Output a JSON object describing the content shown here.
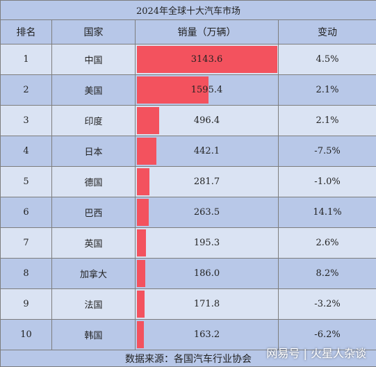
{
  "chart_data": {
    "type": "table",
    "title": "2024年全球十大汽车市场",
    "columns": [
      "排名",
      "国家",
      "销量（万辆）",
      "变动"
    ],
    "rows": [
      {
        "rank": "1",
        "country": "中国",
        "sales": 3143.6,
        "sales_label": "3143.6",
        "change": "4.5%",
        "change_sign": "positive"
      },
      {
        "rank": "2",
        "country": "美国",
        "sales": 1595.4,
        "sales_label": "1595.4",
        "change": "2.1%",
        "change_sign": "positive"
      },
      {
        "rank": "3",
        "country": "印度",
        "sales": 496.4,
        "sales_label": "496.4",
        "change": "2.1%",
        "change_sign": "positive"
      },
      {
        "rank": "4",
        "country": "日本",
        "sales": 442.1,
        "sales_label": "442.1",
        "change": "-7.5%",
        "change_sign": "negative"
      },
      {
        "rank": "5",
        "country": "德国",
        "sales": 281.7,
        "sales_label": "281.7",
        "change": "-1.0%",
        "change_sign": "negative"
      },
      {
        "rank": "6",
        "country": "巴西",
        "sales": 263.5,
        "sales_label": "263.5",
        "change": "14.1%",
        "change_sign": "positive"
      },
      {
        "rank": "7",
        "country": "英国",
        "sales": 195.3,
        "sales_label": "195.3",
        "change": "2.6%",
        "change_sign": "positive"
      },
      {
        "rank": "8",
        "country": "加拿大",
        "sales": 186.0,
        "sales_label": "186.0",
        "change": "8.2%",
        "change_sign": "positive"
      },
      {
        "rank": "9",
        "country": "法国",
        "sales": 171.8,
        "sales_label": "171.8",
        "change": "-3.2%",
        "change_sign": "negative"
      },
      {
        "rank": "10",
        "country": "韩国",
        "sales": 163.2,
        "sales_label": "163.2",
        "change": "-6.2%",
        "change_sign": "negative"
      }
    ],
    "bar_color": "#f3525e",
    "positive_color": "#c00020",
    "negative_color": "#4caf50",
    "header_bg": "#b7c7e8",
    "row_bg_light": "#dae3f3",
    "row_bg_dark": "#b8c8e8",
    "source": "数据来源：各国汽车行业协会"
  },
  "watermark": "网易号 | 火星人杂谈"
}
